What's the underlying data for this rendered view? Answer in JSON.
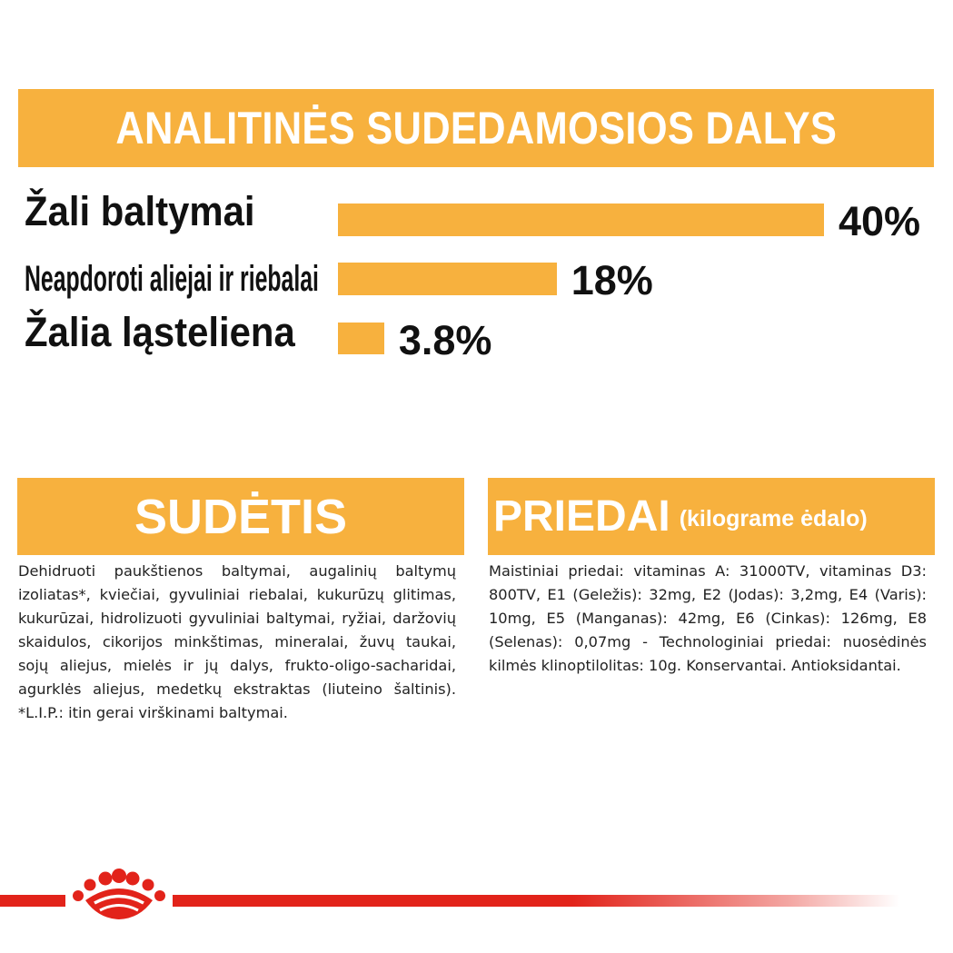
{
  "header": {
    "title": "ANALITINĖS SUDEDAMOSIOS DALYS"
  },
  "chart_data": {
    "type": "bar",
    "orientation": "horizontal",
    "categories": [
      "Žali baltymai",
      "Neapdoroti aliejai ir riebalai",
      "Žalia ląsteliena"
    ],
    "values": [
      40,
      18,
      3.8
    ],
    "value_labels": [
      "40%",
      "18%",
      "3.8%"
    ],
    "bar_color": "#f7b13e"
  },
  "sudetis": {
    "title": "SUDĖTIS",
    "text": "Dehidruoti paukštienos baltymai, augalinių baltymų izoliatas*, kviečiai, gyvuliniai riebalai, kukurūzų glitimas, kukurūzai, hidrolizuoti gyvuliniai baltymai, ryžiai, daržovių skaidulos, cikorijos minkštimas, mineralai, žuvų taukai, sojų aliejus, mielės ir jų dalys, frukto-oligo-sacharidai, agurklės aliejus, medetkų ekstraktas (liuteino šaltinis). *L.I.P.: itin gerai virškinami baltymai."
  },
  "priedai": {
    "title": "PRIEDAI",
    "subtitle": "(kilograme ėdalo)",
    "text": "Maistiniai priedai: vitaminas A: 31000TV, vitaminas D3: 800TV, E1 (Geležis): 32mg, E2 (Jodas): 3,2mg, E4 (Varis): 10mg, E5 (Manganas): 42mg, E6 (Cinkas): 126mg, E8 (Selenas): 0,07mg - Technologiniai priedai: nuosėdinės kilmės klinoptilolitas: 10g. Konservantai. Antioksidantai."
  },
  "brand": {
    "logo_icon": "crown-logo-icon",
    "color": "#e2231a"
  }
}
